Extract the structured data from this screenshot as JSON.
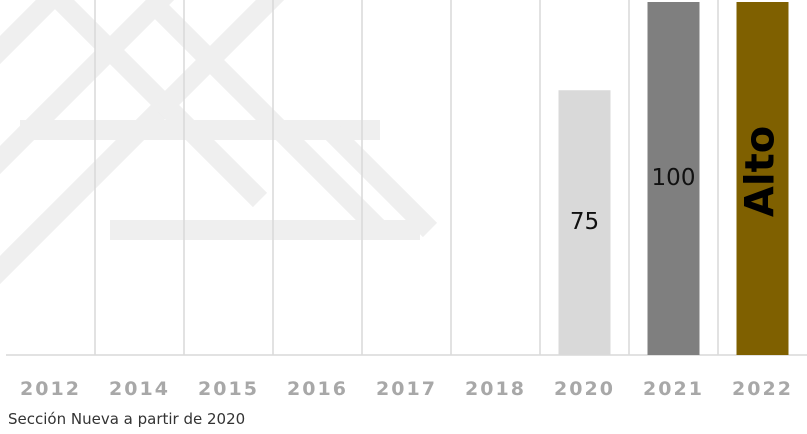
{
  "chart_data": {
    "type": "bar",
    "categories": [
      "2012",
      "2014",
      "2015",
      "2016",
      "2017",
      "2018",
      "2020",
      "2021",
      "2022"
    ],
    "values": [
      null,
      null,
      null,
      null,
      null,
      null,
      75,
      100,
      100
    ],
    "value_labels": [
      "",
      "",
      "",
      "",
      "",
      "",
      "75",
      "100",
      "Alto"
    ],
    "bar_colors": [
      "#d9d9d9",
      "#d9d9d9",
      "#d9d9d9",
      "#d9d9d9",
      "#d9d9d9",
      "#d9d9d9",
      "#d9d9d9",
      "#7f7f7f",
      "#7f6000"
    ],
    "ylim": [
      0,
      100
    ],
    "grid": "vertical",
    "title": "",
    "xlabel": "",
    "ylabel": ""
  },
  "footnote": "Sección Nueva a partir de 2020",
  "colors": {
    "grid": "#d9d9d9",
    "tick_text": "#a8a8a8",
    "watermark": "#f0f0f0"
  }
}
